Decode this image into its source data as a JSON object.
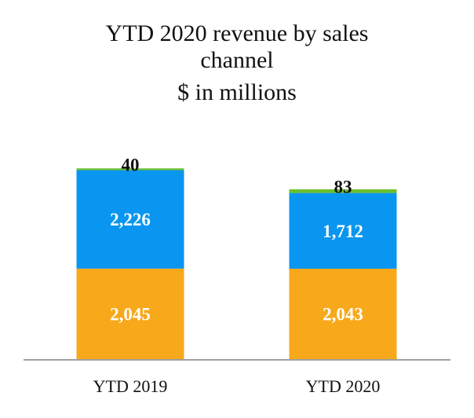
{
  "chart_data": {
    "type": "bar",
    "stacked": true,
    "title_lines": [
      "YTD 2020 revenue by sales",
      "channel",
      "$ in millions"
    ],
    "categories": [
      "YTD 2019",
      "YTD 2020"
    ],
    "series": [
      {
        "name": "bottom",
        "color": "#F7A91B",
        "label_color": "#ffffff",
        "values": [
          2045,
          2043
        ],
        "labels": [
          "2,045",
          "2,043"
        ]
      },
      {
        "name": "middle",
        "color": "#0A96F0",
        "label_color": "#ffffff",
        "values": [
          2226,
          1712
        ],
        "labels": [
          "2,226",
          "1,712"
        ]
      },
      {
        "name": "top",
        "color": "#6CC02C",
        "label_color": "#111111",
        "values": [
          40,
          83
        ],
        "labels": [
          "40",
          "83"
        ]
      }
    ],
    "legend": "none",
    "grid": false
  }
}
